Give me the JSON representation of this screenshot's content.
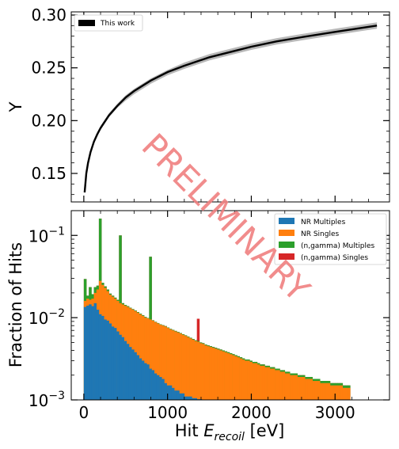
{
  "watermark": "PRELIMINARY",
  "colors": {
    "nr_multiples": "#1f77b4",
    "nr_singles": "#ff7f0e",
    "ngamma_multiples": "#2ca02c",
    "ngamma_singles": "#d62728",
    "this_work": "#000000",
    "watermark": "#f08080"
  },
  "chart_data": [
    {
      "type": "line",
      "ylabel": "Y",
      "xlabel": "",
      "xlim": [
        -150,
        3650
      ],
      "ylim": [
        0.123,
        0.303
      ],
      "yticks": [
        0.15,
        0.2,
        0.25,
        0.3
      ],
      "ytick_labels": [
        "0.15",
        "0.20",
        "0.25",
        "0.30"
      ],
      "xticks": [
        0,
        1000,
        2000,
        3000
      ],
      "legend_position": "top-left",
      "series": [
        {
          "name": "This work",
          "style": "band",
          "x": [
            10,
            30,
            50,
            80,
            120,
            160,
            200,
            300,
            400,
            500,
            600,
            800,
            1000,
            1200,
            1500,
            1800,
            2000,
            2300,
            2600,
            3000,
            3500
          ],
          "y": [
            0.132,
            0.15,
            0.16,
            0.17,
            0.18,
            0.187,
            0.193,
            0.205,
            0.214,
            0.222,
            0.228,
            0.238,
            0.246,
            0.252,
            0.26,
            0.266,
            0.27,
            0.275,
            0.279,
            0.284,
            0.29
          ],
          "y_lower": [
            0.131,
            0.148,
            0.158,
            0.168,
            0.178,
            0.185,
            0.191,
            0.203,
            0.212,
            0.219,
            0.225,
            0.235,
            0.243,
            0.249,
            0.257,
            0.263,
            0.267,
            0.272,
            0.276,
            0.281,
            0.287
          ],
          "y_upper": [
            0.133,
            0.152,
            0.162,
            0.172,
            0.182,
            0.189,
            0.195,
            0.207,
            0.216,
            0.224,
            0.23,
            0.24,
            0.248,
            0.255,
            0.263,
            0.269,
            0.273,
            0.278,
            0.282,
            0.287,
            0.293
          ]
        }
      ]
    },
    {
      "type": "bar",
      "subtype": "stacked histogram",
      "ylabel": "Fraction of Hits",
      "xlabel_prefix": "Hit ",
      "xlabel_symbol": "E",
      "xlabel_subscript": "recoil",
      "xlabel_suffix": " [eV]",
      "xlim": [
        -150,
        3650
      ],
      "ylim": [
        0.001,
        0.2
      ],
      "yscale": "log",
      "xticks": [
        0,
        1000,
        2000,
        3000
      ],
      "xtick_labels": [
        "0",
        "1000",
        "2000",
        "3000"
      ],
      "ytick_exponents": [
        -3,
        -2,
        -1
      ],
      "ytick_base": "10",
      "ytick_minus": "−",
      "legend_position": "top-right",
      "legend": [
        "NR Multiples",
        "NR Singles",
        "(n,gamma) Multiples",
        "(n,gamma) Singles"
      ],
      "bin_width": 30,
      "bin_starts": [
        0,
        30,
        60,
        90,
        120,
        150,
        180,
        210,
        240,
        270,
        300,
        330,
        360,
        390,
        420,
        450,
        480,
        510,
        540,
        570,
        600,
        630,
        660,
        690,
        720,
        750,
        780,
        810,
        840,
        870,
        900,
        930,
        960,
        990,
        1020,
        1050,
        1080,
        1110,
        1140,
        1170,
        1200,
        1230,
        1260,
        1290,
        1320,
        1350,
        1380,
        1410,
        1440,
        1470,
        1500,
        1530,
        1560,
        1590,
        1620,
        1650,
        1680,
        1710,
        1740,
        1770,
        1800,
        1830,
        1860,
        1890,
        1920,
        1950,
        1980,
        2010,
        2040,
        2070,
        2100,
        2130,
        2160,
        2190,
        2220,
        2250,
        2280,
        2310,
        2340,
        2370,
        2400,
        2430,
        2460,
        2490,
        2520,
        2550,
        2580,
        2610,
        2640,
        2670,
        2700,
        2730,
        2760,
        2790,
        2820,
        2850,
        2880,
        2910,
        2940,
        2970,
        3000,
        3030,
        3060,
        3090,
        3120,
        3150
      ],
      "series": [
        {
          "name": "NR Multiples",
          "values": [
            0.0135,
            0.014,
            0.0145,
            0.0138,
            0.015,
            0.0125,
            0.011,
            0.0105,
            0.0095,
            0.0092,
            0.0085,
            0.0078,
            0.0075,
            0.0068,
            0.0062,
            0.0058,
            0.0052,
            0.0048,
            0.0044,
            0.0041,
            0.0038,
            0.0035,
            0.0032,
            0.003,
            0.0028,
            0.0027,
            0.0024,
            0.0023,
            0.0021,
            0.002,
            0.0019,
            0.0018,
            0.0016,
            0.0015,
            0.0015,
            0.0014,
            0.0013,
            0.0013,
            0.0012,
            0.0012,
            0.0011,
            0.0011,
            0.0011,
            0.00105,
            0.00105,
            0.00102,
            0.00102,
            0.00101,
            0.00101,
            0.00101,
            0.00101,
            0.00101,
            0.00101,
            0.00101,
            0.00101,
            0.00101,
            0.00101,
            0.00101,
            0.00101,
            0.00101,
            0.00101,
            0.00101,
            0.00101,
            0.00101,
            0.00101,
            0.00101,
            0.00101,
            0.00101,
            0.00101,
            0.00101,
            0.00101,
            0.00101,
            0.00101,
            0.00101,
            0.00101,
            0.00101,
            0.00101,
            0.00101,
            0.00101,
            0.00101,
            0.00101,
            0.00101,
            0.00101,
            0.00101,
            0.00101,
            0.00101,
            0.00101,
            0.00101,
            0.00101,
            0.00101,
            0.00101,
            0.00101,
            0.00101,
            0.00101,
            0.00101,
            0.00101,
            0.00101,
            0.00101,
            0.00101,
            0.00101,
            0.00101,
            0.00101,
            0.00101,
            0.00101,
            0.00101,
            0.00101
          ]
        },
        {
          "name": "NR Singles",
          "values": [
            0.016,
            0.017,
            0.0165,
            0.017,
            0.02,
            0.022,
            0.028,
            0.025,
            0.023,
            0.021,
            0.019,
            0.018,
            0.017,
            0.016,
            0.015,
            0.0145,
            0.014,
            0.0135,
            0.013,
            0.0125,
            0.012,
            0.0115,
            0.011,
            0.0105,
            0.01,
            0.0098,
            0.0095,
            0.0092,
            0.0088,
            0.0085,
            0.0082,
            0.008,
            0.0078,
            0.0075,
            0.0072,
            0.007,
            0.0068,
            0.0066,
            0.0064,
            0.0062,
            0.006,
            0.0058,
            0.0056,
            0.0054,
            0.0052,
            0.0051,
            0.0049,
            0.0048,
            0.0046,
            0.0045,
            0.0044,
            0.0043,
            0.0042,
            0.0041,
            0.004,
            0.0039,
            0.0038,
            0.0037,
            0.0036,
            0.0035,
            0.0034,
            0.0033,
            0.0032,
            0.0031,
            0.003,
            0.003,
            0.0029,
            0.0028,
            0.0028,
            0.0027,
            0.0026,
            0.0026,
            0.0025,
            0.0025,
            0.0024,
            0.0024,
            0.0023,
            0.0023,
            0.0022,
            0.0022,
            0.0021,
            0.0021,
            0.002,
            0.002,
            0.002,
            0.0019,
            0.0019,
            0.0019,
            0.0018,
            0.0018,
            0.0018,
            0.0017,
            0.0017,
            0.0017,
            0.0016,
            0.0016,
            0.0016,
            0.0016,
            0.0015,
            0.0015,
            0.0015,
            0.0015,
            0.0015,
            0.0014,
            0.0014,
            0.0014
          ]
        },
        {
          "name": "(n,gamma) Multiples",
          "values": [
            0.0295,
            0.0185,
            0.0235,
            0.0193,
            0.0235,
            0.0245,
            0.16,
            0.0265,
            0.024,
            0.022,
            0.0196,
            0.0185,
            0.0175,
            0.0165,
            0.1,
            0.015,
            0.0143,
            0.0138,
            0.0132,
            0.0127,
            0.0122,
            0.0117,
            0.0112,
            0.0107,
            0.0102,
            0.0099,
            0.055,
            0.0093,
            0.0089,
            0.0086,
            0.0083,
            0.0081,
            0.0079,
            0.0076,
            0.0073,
            0.0071,
            0.0069,
            0.0067,
            0.0065,
            0.0063,
            0.0061,
            0.0059,
            0.0057,
            0.0055,
            0.0053,
            0.0052,
            0.005,
            0.0049,
            0.0047,
            0.0046,
            0.0045,
            0.0044,
            0.0043,
            0.0042,
            0.0041,
            0.004,
            0.0039,
            0.0038,
            0.0037,
            0.0036,
            0.0035,
            0.0034,
            0.0033,
            0.0032,
            0.0031,
            0.0031,
            0.003,
            0.0029,
            0.0029,
            0.0028,
            0.0027,
            0.0027,
            0.0026,
            0.0026,
            0.0025,
            0.0025,
            0.0024,
            0.0024,
            0.0023,
            0.0023,
            0.0022,
            0.0022,
            0.0021,
            0.0021,
            0.0021,
            0.002,
            0.002,
            0.002,
            0.0019,
            0.0019,
            0.0019,
            0.0018,
            0.0018,
            0.0018,
            0.0017,
            0.0017,
            0.0017,
            0.0017,
            0.0016,
            0.0016,
            0.0016,
            0.0016,
            0.0016,
            0.0015,
            0.0015,
            0.0015
          ]
        },
        {
          "name": "(n,gamma) Singles",
          "values": [
            0.0295,
            0.0185,
            0.0235,
            0.0193,
            0.0235,
            0.0245,
            0.16,
            0.0265,
            0.024,
            0.022,
            0.0196,
            0.0185,
            0.0175,
            0.0165,
            0.1,
            0.015,
            0.0143,
            0.0138,
            0.0132,
            0.0127,
            0.0122,
            0.0117,
            0.0112,
            0.0107,
            0.0102,
            0.0099,
            0.055,
            0.0093,
            0.0089,
            0.0086,
            0.0083,
            0.0081,
            0.0079,
            0.0076,
            0.0073,
            0.0071,
            0.0069,
            0.0067,
            0.0065,
            0.0063,
            0.0061,
            0.0059,
            0.0057,
            0.0055,
            0.0053,
            0.0097,
            0.005,
            0.0049,
            0.0047,
            0.0046,
            0.0045,
            0.0044,
            0.0043,
            0.0042,
            0.0041,
            0.004,
            0.0039,
            0.0038,
            0.0037,
            0.0036,
            0.0035,
            0.0034,
            0.0033,
            0.0032,
            0.0031,
            0.0031,
            0.003,
            0.0029,
            0.0029,
            0.0028,
            0.0027,
            0.0027,
            0.0026,
            0.0026,
            0.0025,
            0.0025,
            0.0024,
            0.0024,
            0.0023,
            0.0023,
            0.0022,
            0.0022,
            0.0021,
            0.0021,
            0.0021,
            0.002,
            0.002,
            0.002,
            0.0019,
            0.0019,
            0.0019,
            0.0018,
            0.0018,
            0.0018,
            0.0017,
            0.0017,
            0.0017,
            0.0017,
            0.0016,
            0.0016,
            0.0016,
            0.0016,
            0.0016,
            0.0015,
            0.0015,
            0.0015
          ]
        }
      ]
    }
  ]
}
